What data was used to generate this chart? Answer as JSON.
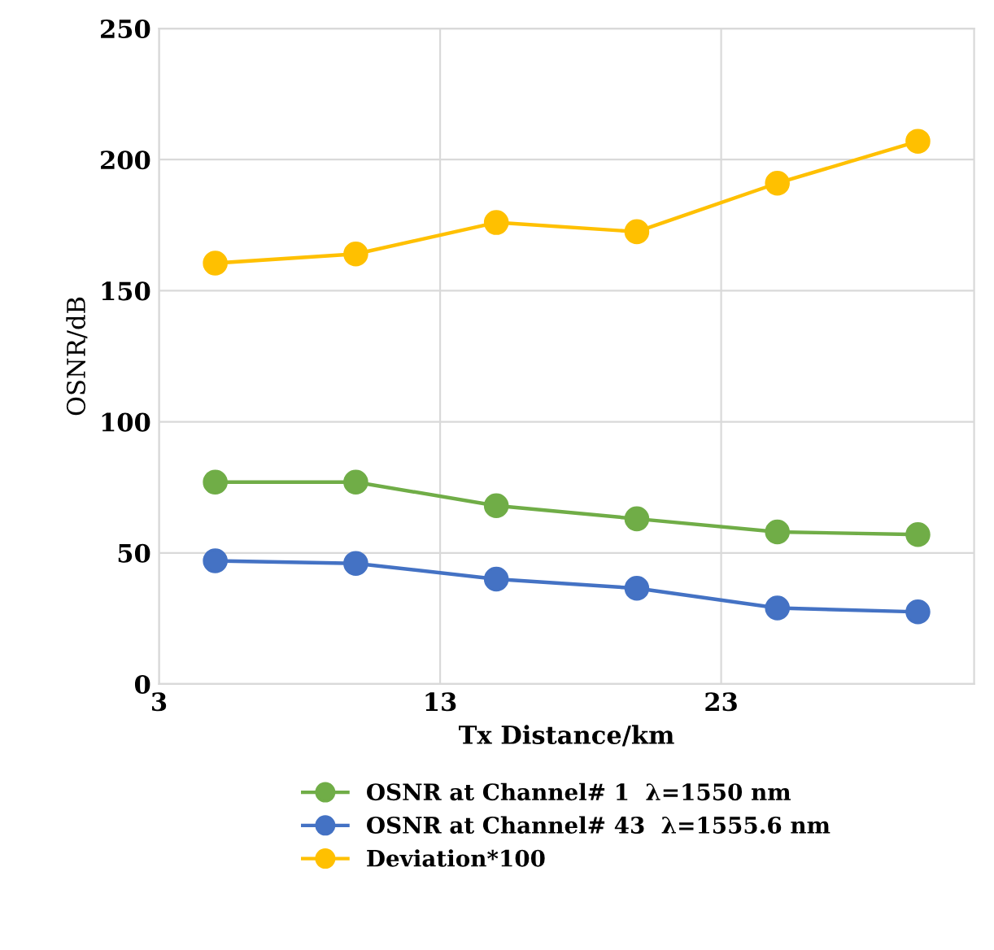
{
  "chart_data": {
    "type": "line",
    "xlabel": "Tx Distance/km",
    "ylabel": "OSNR/dB",
    "x": [
      5,
      10,
      15,
      20,
      25,
      30
    ],
    "series": [
      {
        "name": "OSNR at Channel# 1  λ=1550 nm",
        "color": "#70ad47",
        "values": [
          77,
          77,
          68,
          63,
          58,
          57
        ]
      },
      {
        "name": "OSNR at Channel# 43  λ=1555.6 nm",
        "color": "#4472c4",
        "values": [
          47,
          46,
          40,
          36.5,
          29,
          27.5
        ]
      },
      {
        "name": "Deviation*100",
        "color": "#ffc000",
        "values": [
          160.5,
          164,
          176,
          172.5,
          191,
          207
        ]
      }
    ],
    "xlim": [
      3,
      32
    ],
    "xticks": [
      3,
      13,
      23
    ],
    "ylim": [
      0,
      250
    ],
    "yticks": [
      0,
      50,
      100,
      150,
      200,
      250
    ],
    "grid": true,
    "legend": "bottom",
    "marker": "circle",
    "line_style": "solid"
  }
}
